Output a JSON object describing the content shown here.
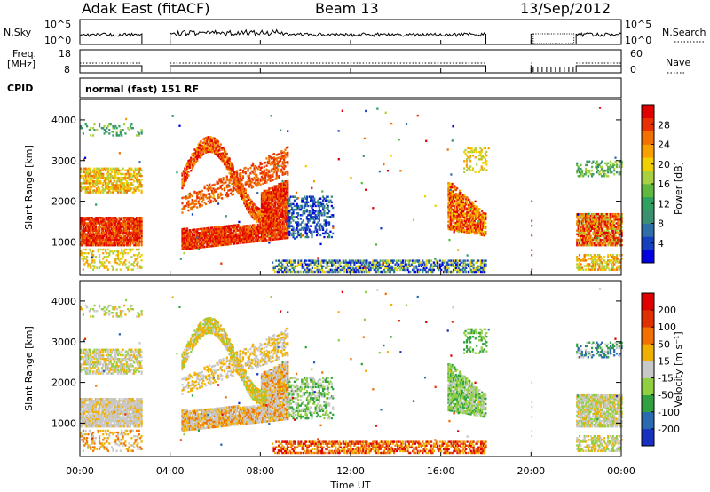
{
  "chart_data": {
    "type": "heatmap",
    "header": {
      "station": "Adak East (fitACF)",
      "beam": "Beam 13",
      "date": "13/Sep/2012",
      "cpid_text": "normal (fast) 151 RF"
    },
    "top_panels": {
      "nsky": {
        "label": "N.Sky",
        "ticks": [
          "10^5",
          "10^0"
        ]
      },
      "nsearch": {
        "label": "N.Search",
        "ticks": [
          "10^5",
          "10^0"
        ]
      },
      "freq": {
        "label_line1": "Freq.",
        "label_line2": "[MHz]",
        "ticks": [
          "18",
          "8"
        ]
      },
      "nave": {
        "label": "Nave",
        "ticks": [
          "60",
          "0"
        ]
      },
      "cpid": {
        "label": "CPID"
      },
      "coverage_hours": [
        [
          0,
          2.75
        ],
        [
          4,
          18
        ],
        [
          20,
          20.05
        ],
        [
          22,
          24
        ]
      ]
    },
    "x_axis": {
      "label": "Time UT",
      "range_hours": [
        0,
        24
      ],
      "tick_labels": [
        "00:00",
        "04:00",
        "08:00",
        "12:00",
        "16:00",
        "20:00",
        "00:00"
      ]
    },
    "power_panel": {
      "ylabel": "Slant Range [km]",
      "y_ticks": [
        "4000",
        "3000",
        "2000",
        "1000"
      ],
      "ylim_km": [
        180,
        4500
      ],
      "colorbar": {
        "label": "Power [dB]",
        "tick_labels": [
          "28",
          "24",
          "20",
          "16",
          "12",
          "8",
          "4"
        ],
        "colors": [
          "#0000e0",
          "#1540c0",
          "#2e6fa8",
          "#3a9070",
          "#30a060",
          "#60b840",
          "#a8d040",
          "#f0d000",
          "#f8a000",
          "#f07000",
          "#e83000",
          "#e00000"
        ]
      }
    },
    "velocity_panel": {
      "ylabel": "Slant Range [km]",
      "y_ticks": [
        "4000",
        "3000",
        "2000",
        "1000"
      ],
      "ylim_km": [
        180,
        4500
      ],
      "colorbar": {
        "label": "Velocity [m s⁻¹]",
        "tick_labels": [
          "200",
          "100",
          "50",
          "15",
          "-15",
          "-50",
          "-100",
          "-200"
        ],
        "colors": [
          "#1830c0",
          "#2a6ab0",
          "#30a040",
          "#90d040",
          "#c8c8c8",
          "#f0b000",
          "#f07000",
          "#e03000",
          "#e00000"
        ]
      }
    }
  }
}
